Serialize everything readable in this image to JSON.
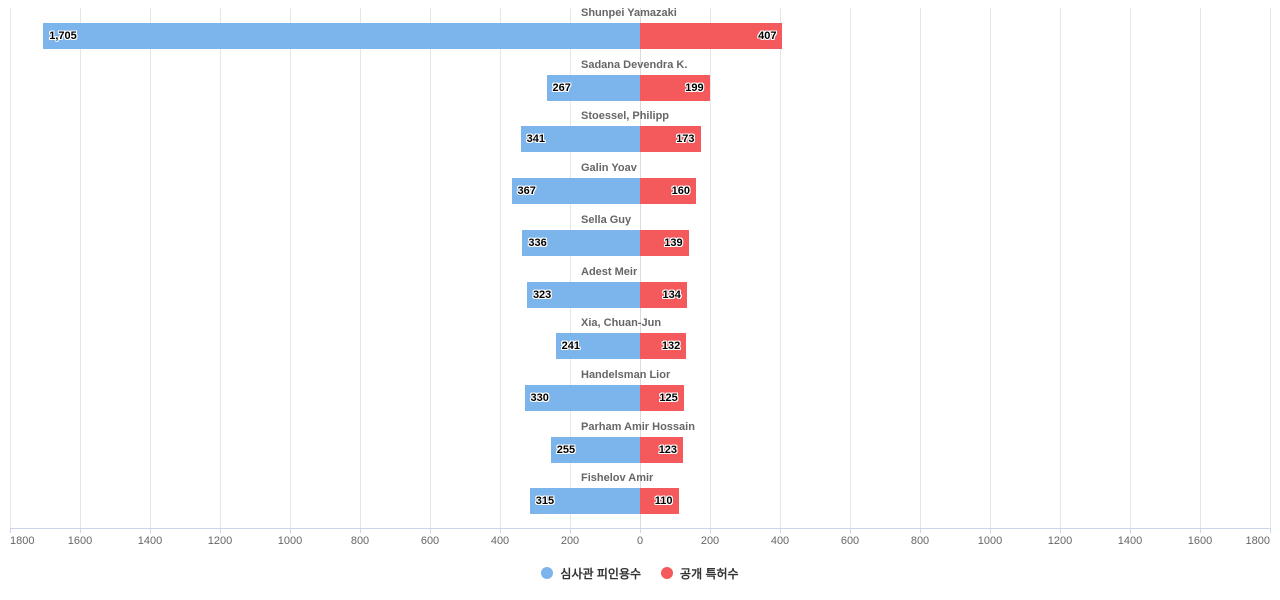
{
  "chart": {
    "background": "#ffffff",
    "legend": {
      "items": [
        {
          "label": "심사관 피인용수",
          "color": "#7cb5ec"
        },
        {
          "label": "공개 특허수",
          "color": "#f4595b"
        }
      ]
    }
  },
  "chart_data": {
    "type": "bar",
    "variant": "bidirectional-tornado",
    "orientation": "horizontal",
    "title": "",
    "categories": [
      "Shunpei Yamazaki",
      "Sadana Devendra K.",
      "Stoessel, Philipp",
      "Galin Yoav",
      "Sella Guy",
      "Adest Meir",
      "Xia, Chuan-Jun",
      "Handelsman Lior",
      "Parham Amir Hossain",
      "Fishelov Amir"
    ],
    "series": [
      {
        "name": "심사관 피인용수",
        "side": "left",
        "color": "#7cb5ec",
        "values": [
          1705,
          267,
          341,
          367,
          336,
          323,
          241,
          330,
          255,
          315
        ],
        "labels": [
          "1,705",
          "267",
          "341",
          "367",
          "336",
          "323",
          "241",
          "330",
          "255",
          "315"
        ]
      },
      {
        "name": "공개 특허수",
        "side": "right",
        "color": "#f4595b",
        "values": [
          407,
          199,
          173,
          160,
          139,
          134,
          132,
          125,
          123,
          110
        ],
        "labels": [
          "407",
          "199",
          "173",
          "160",
          "139",
          "134",
          "132",
          "125",
          "123",
          "110"
        ]
      }
    ],
    "x_axis": {
      "min": 0,
      "max": 1800,
      "tick_interval": 200,
      "tick_labels": [
        "1800",
        "1600",
        "1400",
        "1200",
        "1000",
        "800",
        "600",
        "400",
        "200",
        "0",
        "200",
        "400",
        "600",
        "800",
        "1000",
        "1200",
        "1400",
        "1600",
        "1800"
      ]
    },
    "grid": true,
    "legend_position": "bottom-center",
    "styles": {
      "gridline_color": "#e6e6e6",
      "center_gridline_color": "#dcdcdc",
      "axis_line_color": "#ccd6eb",
      "tick_label_color": "#666666",
      "category_label_color": "#666666",
      "value_label_color": "#000000",
      "legend_text_color": "#333333"
    }
  }
}
